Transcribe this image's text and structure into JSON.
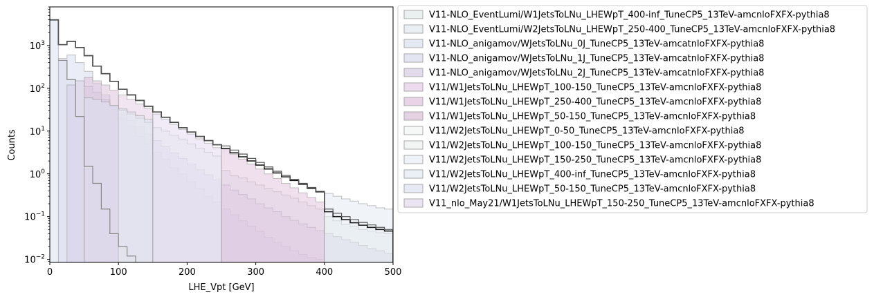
{
  "chart_data": {
    "type": "area",
    "xlabel": "LHE_Vpt [GeV]",
    "ylabel": "Counts",
    "xlim": [
      0,
      500
    ],
    "ylim": [
      0.0085,
      8000
    ],
    "y_scale": "log",
    "grid": false,
    "legend_position": "outside-right",
    "x_ticks": [
      0,
      100,
      200,
      300,
      400,
      500
    ],
    "y_ticks": [
      {
        "value": 0.01,
        "base": "10",
        "exp": "−2"
      },
      {
        "value": 0.1,
        "base": "10",
        "exp": "−1"
      },
      {
        "value": 1,
        "base": "10",
        "exp": "0"
      },
      {
        "value": 10,
        "base": "10",
        "exp": "1"
      },
      {
        "value": 100,
        "base": "10",
        "exp": "2"
      },
      {
        "value": 1000,
        "base": "10",
        "exp": "3"
      }
    ],
    "bin_edges": [
      0,
      12.5,
      25,
      37.5,
      50,
      62.5,
      75,
      87.5,
      100,
      112.5,
      125,
      137.5,
      150,
      162.5,
      175,
      187.5,
      200,
      212.5,
      225,
      237.5,
      250,
      262.5,
      275,
      287.5,
      300,
      312.5,
      325,
      337.5,
      350,
      362.5,
      375,
      387.5,
      400,
      412.5,
      425,
      437.5,
      450,
      462.5,
      475,
      487.5,
      500
    ],
    "series": [
      {
        "name": "V11-NLO_EventLumi/W1JetsToLNu_LHEWpT_400-inf_TuneCP5_13TeV-amcnloFXFX-pythia8",
        "color": "#e3ebe9",
        "values": [
          0,
          0,
          0,
          0,
          0,
          0,
          0,
          0,
          0,
          0,
          0,
          0,
          0,
          0,
          0,
          0,
          0,
          0,
          0,
          0,
          0,
          0,
          0,
          0,
          0,
          0,
          0,
          0,
          0,
          0,
          0,
          0,
          0.1,
          0.08,
          0.065,
          0.058,
          0.05,
          0.046,
          0.042,
          0.04
        ]
      },
      {
        "name": "V11-NLO_EventLumi/W2JetsToLNu_LHEWpT_250-400_TuneCP5_13TeV-amcnloFXFX-pythia8",
        "color": "#e2eaef",
        "values": [
          0,
          0,
          0,
          0,
          0,
          0,
          0,
          0,
          0,
          0,
          0,
          0,
          0,
          0,
          0,
          0,
          0,
          0,
          0,
          0,
          1.2,
          0.9,
          0.8,
          0.65,
          0.55,
          0.45,
          0.38,
          0.32,
          0.27,
          0.22,
          0.18,
          0.15,
          0,
          0,
          0,
          0,
          0,
          0,
          0,
          0
        ]
      },
      {
        "name": "V11-NLO_anigamov/WJetsToLNu_0J_TuneCP5_13TeV-amcatnloFXFX-pythia8",
        "color": "#dbe2ef",
        "values": [
          3900,
          450,
          160,
          22,
          1.5,
          0.6,
          0.15,
          0.04,
          0.02,
          0.012,
          0,
          0,
          0,
          0,
          0,
          0,
          0,
          0,
          0,
          0,
          0,
          0,
          0,
          0,
          0,
          0,
          0,
          0,
          0,
          0,
          0,
          0,
          0,
          0,
          0,
          0,
          0,
          0,
          0,
          0
        ]
      },
      {
        "name": "V11-NLO_anigamov/WJetsToLNu_1J_TuneCP5_13TeV-amcatnloFXFX-pythia8",
        "color": "#d9dcee",
        "values": [
          0,
          500,
          600,
          400,
          250,
          130,
          70,
          40,
          20,
          13,
          7.5,
          5,
          3.2,
          2.2,
          1.4,
          1.0,
          0.65,
          0.45,
          0.3,
          0.22,
          0.15,
          0.11,
          0.08,
          0.06,
          0.045,
          0.033,
          0.025,
          0.02,
          0.016,
          0.013,
          0.011,
          0.01,
          0,
          0,
          0,
          0,
          0,
          0,
          0,
          0
        ]
      },
      {
        "name": "V11-NLO_anigamov/WJetsToLNu_2J_TuneCP5_13TeV-amcatnloFXFX-pythia8",
        "color": "#d7cfe6",
        "values": [
          0,
          0,
          120,
          150,
          110,
          80,
          55,
          37,
          25,
          18,
          12.5,
          8.5,
          6,
          4.3,
          3.1,
          2.3,
          1.7,
          1.25,
          0.95,
          0.72,
          0.55,
          0.42,
          0.33,
          0.26,
          0.2,
          0.16,
          0.13,
          0.1,
          0.082,
          0.068,
          0.056,
          0.047,
          0.04,
          0.034,
          0.029,
          0.025,
          0.021,
          0.018,
          0.016,
          0.014
        ]
      },
      {
        "name": "V11/W1JetsToLNu_LHEWpT_100-150_TuneCP5_13TeV-amcnloFXFX-pythia8",
        "color": "#e6cfe8",
        "values": [
          0,
          0,
          0,
          0,
          0,
          0,
          0,
          0,
          70,
          55,
          43,
          34,
          0,
          0,
          0,
          0,
          0,
          0,
          0,
          0,
          0,
          0,
          0,
          0,
          0,
          0,
          0,
          0,
          0,
          0,
          0,
          0,
          0,
          0,
          0,
          0,
          0,
          0,
          0,
          0
        ]
      },
      {
        "name": "V11/W1JetsToLNu_LHEWpT_250-400_TuneCP5_13TeV-amcnloFXFX-pythia8",
        "color": "#e3c4df",
        "values": [
          0,
          0,
          0,
          0,
          0,
          0,
          0,
          0,
          0,
          0,
          0,
          0,
          0,
          0,
          0,
          0,
          0,
          0,
          0,
          0,
          3.8,
          2.9,
          2.2,
          1.7,
          1.3,
          1.0,
          0.78,
          0.6,
          0.47,
          0.36,
          0.28,
          0.22,
          0,
          0,
          0,
          0,
          0,
          0,
          0,
          0
        ]
      },
      {
        "name": "V11/W1JetsToLNu_LHEWpT_50-150_TuneCP5_13TeV-amcnloFXFX-pythia8",
        "color": "#dcc3da",
        "values": [
          0,
          0,
          0,
          0,
          180,
          150,
          120,
          90,
          0,
          0,
          0,
          0,
          0,
          0,
          0,
          0,
          0,
          0,
          0,
          0,
          0,
          0,
          0,
          0,
          0,
          0,
          0,
          0,
          0,
          0,
          0,
          0,
          0,
          0,
          0,
          0,
          0,
          0,
          0,
          0
        ]
      },
      {
        "name": "V11/W2JetsToLNu_LHEWpT_0-50_TuneCP5_13TeV-amcnloFXFX-pythia8",
        "color": "#f3f5f6",
        "values": [
          0,
          0,
          0,
          0,
          0,
          0,
          0,
          0,
          0,
          0,
          0,
          0,
          0,
          0,
          0,
          0,
          0,
          0,
          0,
          0,
          0,
          0,
          0,
          0,
          0,
          0,
          0,
          0,
          0,
          0,
          0,
          0,
          0,
          0,
          0,
          0,
          0,
          0,
          0,
          0
        ]
      },
      {
        "name": "V11/W2JetsToLNu_LHEWpT_100-150_TuneCP5_13TeV-amcnloFXFX-pythia8",
        "color": "#eef2ef",
        "values": [
          0,
          0,
          0,
          0,
          0,
          0,
          0,
          0,
          30,
          25,
          20,
          16,
          0,
          0,
          0,
          0,
          0,
          0,
          0,
          0,
          0,
          0,
          0,
          0,
          0,
          0,
          0,
          0,
          0,
          0,
          0,
          0,
          0,
          0,
          0,
          0,
          0,
          0,
          0,
          0
        ]
      },
      {
        "name": "V11/W2JetsToLNu_LHEWpT_150-250_TuneCP5_13TeV-amcnloFXFX-pythia8",
        "color": "#e9eef4",
        "values": [
          0,
          0,
          0,
          0,
          0,
          0,
          0,
          0,
          0,
          0,
          0,
          0,
          12,
          10,
          8,
          6.5,
          5,
          4,
          3.2,
          2.6,
          0,
          0,
          0,
          0,
          0,
          0,
          0,
          0,
          0,
          0,
          0,
          0,
          0,
          0,
          0,
          0,
          0,
          0,
          0,
          0
        ]
      },
      {
        "name": "V11/W2JetsToLNu_LHEWpT_400-inf_TuneCP5_13TeV-amcnloFXFX-pythia8",
        "color": "#e4ebf3",
        "values": [
          0,
          0,
          0,
          0,
          0,
          0,
          0,
          0,
          0,
          0,
          0,
          0,
          0,
          0,
          0,
          0,
          0,
          0,
          0,
          0,
          0,
          0,
          0,
          0,
          0,
          0,
          0,
          0,
          0,
          0,
          0,
          0,
          0.35,
          0.3,
          0.26,
          0.23,
          0.2,
          0.18,
          0.16,
          0.15
        ]
      },
      {
        "name": "V11/W2JetsToLNu_LHEWpT_50-150_TuneCP5_13TeV-amcnloFXFX-pythia8",
        "color": "#dfe2f1",
        "values": [
          0,
          0,
          0,
          0,
          60,
          55,
          48,
          40,
          33,
          28,
          23,
          19,
          0,
          0,
          0,
          0,
          0,
          0,
          0,
          0,
          0,
          0,
          0,
          0,
          0,
          0,
          0,
          0,
          0,
          0,
          0,
          0,
          0,
          0,
          0,
          0,
          0,
          0,
          0,
          0
        ]
      },
      {
        "name": "V11_nlo_May21/W1JetsToLNu_LHEWpT_150-250_TuneCP5_13TeV-amcnloFXFX-pythia8",
        "color": "#e4dbee",
        "values": [
          0,
          0,
          0,
          0,
          0,
          0,
          0,
          0,
          0,
          0,
          0,
          0,
          25,
          19,
          14.5,
          11,
          8.5,
          6.6,
          5.2,
          4.1,
          0,
          0,
          0,
          0,
          0,
          0,
          0,
          0,
          0,
          0,
          0,
          0,
          0,
          0,
          0,
          0,
          0,
          0,
          0,
          0
        ]
      }
    ],
    "outline_series": [
      {
        "color": "#1a1a1a",
        "values": [
          4000,
          1050,
          1250,
          900,
          580,
          330,
          220,
          145,
          95,
          70,
          52,
          38,
          28,
          21,
          16,
          12,
          9.5,
          7.5,
          6,
          4.8,
          3.9,
          3.1,
          2.5,
          2.0,
          1.6,
          1.3,
          1.05,
          0.85,
          0.7,
          0.57,
          0.46,
          0.38,
          0.13,
          0.1,
          0.085,
          0.072,
          0.063,
          0.056,
          0.05,
          0.046
        ]
      },
      {
        "color": "#555555",
        "values": [
          4000,
          1050,
          1250,
          900,
          580,
          330,
          220,
          145,
          95,
          70,
          52,
          38,
          28,
          21,
          16,
          12,
          9.5,
          7.5,
          6,
          4.8,
          4.5,
          3.6,
          2.9,
          2.3,
          1.85,
          1.45,
          1.15,
          0.92,
          0.74,
          0.6,
          0.48,
          0.39,
          0.15,
          0.12,
          0.1,
          0.085,
          0.073,
          0.064,
          0.056,
          0.05
        ]
      },
      {
        "color": "#888888",
        "values": [
          0,
          450,
          160,
          22,
          1.5,
          0.6,
          0.15,
          0.04,
          0.02,
          0.012,
          0.008,
          0.008,
          0,
          0,
          0,
          0,
          0,
          0,
          0,
          0,
          0,
          0,
          0,
          0,
          0,
          0,
          0,
          0,
          0,
          0,
          0,
          0,
          0,
          0,
          0,
          0,
          0,
          0,
          0,
          0
        ]
      }
    ]
  }
}
